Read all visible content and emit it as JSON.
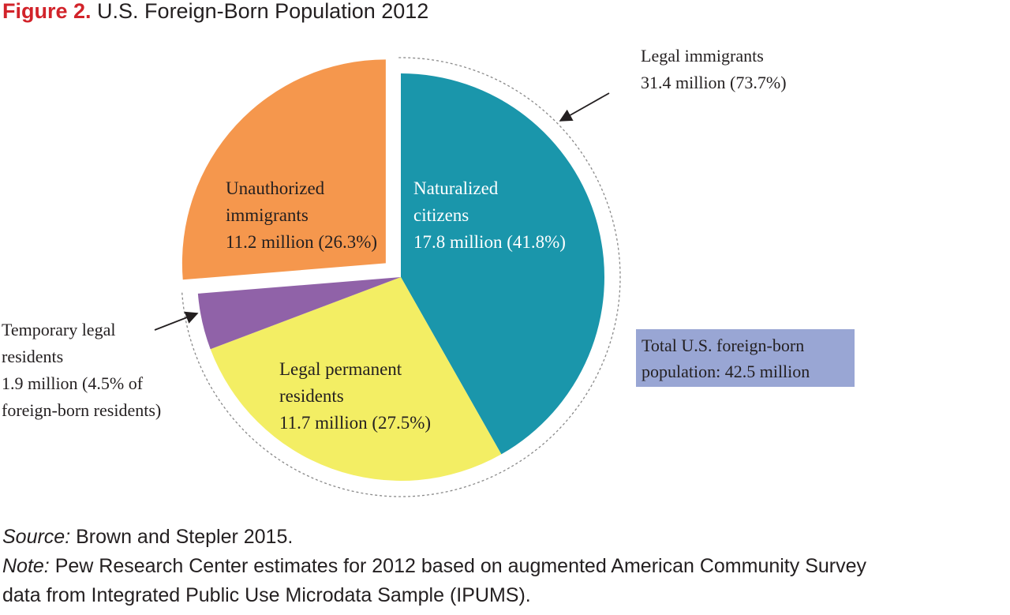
{
  "figure": {
    "label": "Figure 2.",
    "title": "U.S. Foreign-Born Population 2012"
  },
  "chart_data": {
    "type": "pie",
    "title": "U.S. Foreign-Born Population 2012",
    "unit": "million",
    "slices": [
      {
        "key": "naturalized",
        "label": [
          "Naturalized",
          "citizens",
          "17.8 million (41.8%)"
        ],
        "value": 17.8,
        "percent": 41.8,
        "color": "#1a96ab",
        "exploded": false
      },
      {
        "key": "permanent",
        "label": [
          "Legal permanent",
          "residents",
          "11.7 million (27.5%)"
        ],
        "value": 11.7,
        "percent": 27.5,
        "color": "#f3ee64",
        "exploded": false
      },
      {
        "key": "temporary",
        "label": [],
        "value": 1.9,
        "percent": 4.5,
        "color": "#9062a8",
        "exploded": false
      },
      {
        "key": "unauthorized",
        "label": [
          "Unauthorized",
          "immigrants",
          "11.2 million (26.3%)"
        ],
        "value": 11.2,
        "percent": 26.3,
        "color": "#f5974d",
        "exploded": true
      }
    ],
    "group_annotation": {
      "lines": [
        "Legal immigrants",
        "31.4 million (73.7%)"
      ],
      "value": 31.4,
      "percent": 73.7,
      "covers": [
        "naturalized",
        "permanent",
        "temporary"
      ]
    },
    "temporary_annotation": {
      "lines": [
        "Temporary legal",
        "residents",
        "1.9 million (4.5% of",
        "foreign-born residents)"
      ]
    },
    "total": {
      "lines": [
        "Total U.S. foreign-born",
        "population: 42.5  million"
      ],
      "value": 42.5,
      "color": "#99a6d4"
    }
  },
  "footnotes": {
    "source_label": "Source:",
    "source_text": " Brown and Stepler 2015.",
    "note_label": "Note:",
    "note_text": " Pew Research Center estimates for 2012 based on augmented American Community Survey",
    "note_text_2": "data from Integrated Public Use Microdata Sample (IPUMS)."
  }
}
